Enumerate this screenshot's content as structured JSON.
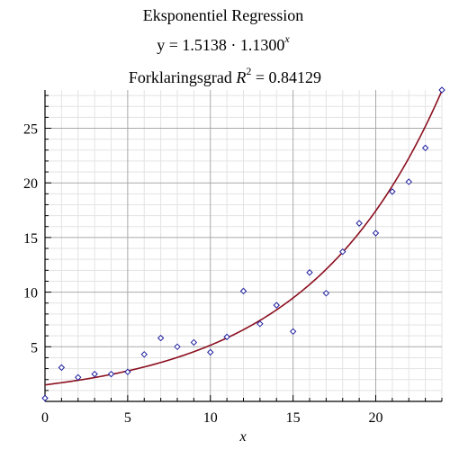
{
  "chart_data": {
    "type": "scatter",
    "title_line1": "Eksponentiel Regression",
    "equation": {
      "prefix": "y = 1.5138 · 1.1300",
      "exponent": "x"
    },
    "r_squared": {
      "prefix": "Forklaringsgrad ",
      "symbol": "R",
      "power": "2",
      "suffix": " = 0.84129"
    },
    "xlabel": "x",
    "ylabel": "",
    "xlim": [
      0,
      24
    ],
    "ylim": [
      0,
      28.5
    ],
    "xticks": [
      0,
      5,
      10,
      15,
      20
    ],
    "yticks": [
      5,
      10,
      15,
      20,
      25
    ],
    "grid": true,
    "colors": {
      "points": "#1f1f9f",
      "curve": "#8b0f1f",
      "major_grid": "#a9a9a9",
      "minor_grid": "#e3e3e3"
    },
    "model": {
      "a": 1.5138,
      "b": 1.13
    },
    "series": [
      {
        "points": [
          [
            0,
            0.3
          ],
          [
            1,
            3.1
          ],
          [
            2,
            2.2
          ],
          [
            3,
            2.5
          ],
          [
            4,
            2.5
          ],
          [
            5,
            2.7
          ],
          [
            6,
            4.3
          ],
          [
            7,
            5.8
          ],
          [
            8,
            5.0
          ],
          [
            9,
            5.4
          ],
          [
            10,
            4.5
          ],
          [
            11,
            5.9
          ],
          [
            12,
            10.1
          ],
          [
            13,
            7.1
          ],
          [
            14,
            8.8
          ],
          [
            15,
            6.4
          ],
          [
            16,
            11.8
          ],
          [
            17,
            9.9
          ],
          [
            18,
            13.7
          ],
          [
            19,
            16.3
          ],
          [
            20,
            15.4
          ],
          [
            21,
            19.2
          ],
          [
            22,
            20.1
          ],
          [
            23,
            23.2
          ],
          [
            24,
            28.5
          ]
        ]
      }
    ]
  }
}
